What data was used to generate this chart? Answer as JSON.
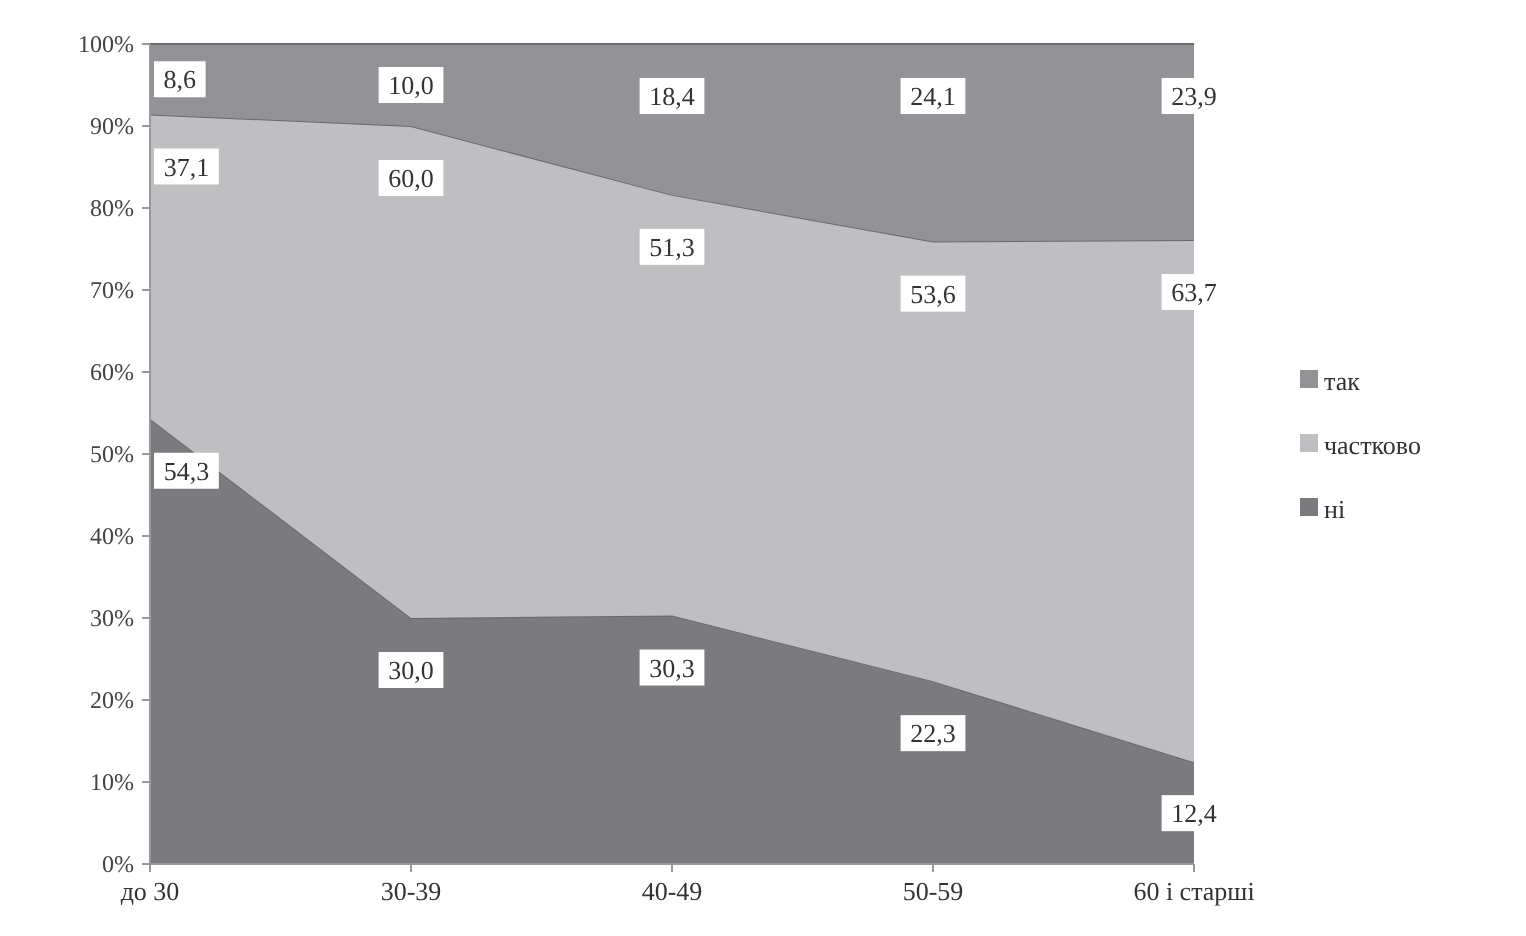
{
  "chart_data": {
    "type": "area",
    "stacked": true,
    "categories": [
      "до 30",
      "30-39",
      "40-49",
      "50-59",
      "60 і старші"
    ],
    "series": [
      {
        "name": "ні",
        "color": "#7b7b7f",
        "values": [
          54.3,
          30.0,
          30.3,
          22.3,
          12.4
        ],
        "value_labels": [
          "54,3",
          "30,0",
          "30,3",
          "22,3",
          "12,4"
        ]
      },
      {
        "name": "частково",
        "color": "#bfbfc1",
        "values": [
          37.1,
          60.0,
          51.3,
          53.6,
          63.7
        ],
        "value_labels": [
          "37,1",
          "60,0",
          "51,3",
          "53,6",
          "63,7"
        ]
      },
      {
        "name": "так",
        "color": "#939397",
        "values": [
          8.6,
          10.0,
          18.4,
          24.1,
          23.9
        ],
        "value_labels": [
          "8,6",
          "10,0",
          "18,4",
          "24,1",
          "23,9"
        ]
      }
    ],
    "ylim": [
      0,
      100
    ],
    "yticks": [
      {
        "value": 0,
        "label": "0%"
      },
      {
        "value": 10,
        "label": "10%"
      },
      {
        "value": 20,
        "label": "20%"
      },
      {
        "value": 30,
        "label": "30%"
      },
      {
        "value": 40,
        "label": "40%"
      },
      {
        "value": 50,
        "label": "50%"
      },
      {
        "value": 60,
        "label": "60%"
      },
      {
        "value": 70,
        "label": "70%"
      },
      {
        "value": 80,
        "label": "80%"
      },
      {
        "value": 90,
        "label": "90%"
      },
      {
        "value": 100,
        "label": "100%"
      }
    ],
    "legend": "right",
    "grid": false
  }
}
